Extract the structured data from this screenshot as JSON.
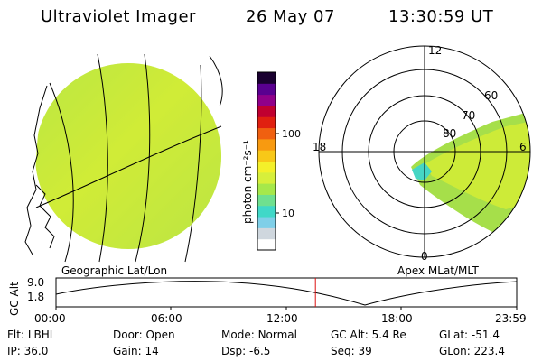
{
  "header": {
    "instrument": "Ultraviolet Imager",
    "date": "26 May 07",
    "time": "13:30:59 UT"
  },
  "left_panel": {
    "label": "Geographic Lat/Lon"
  },
  "colorbar": {
    "unit_label": "photon cm⁻²s⁻¹",
    "ticks": [
      "100",
      "10"
    ],
    "scale": "log",
    "colors": [
      "#ffffff",
      "#cfd7de",
      "#7fcfe8",
      "#40d8c8",
      "#6fe08f",
      "#a6e84a",
      "#d7ef3b",
      "#f4f02a",
      "#f8c818",
      "#f89a10",
      "#f06010",
      "#e02010",
      "#c00030",
      "#90008a",
      "#5a0090",
      "#1a0030"
    ]
  },
  "polar_panel": {
    "label": "Apex MLat/MLT",
    "mlt_labels": {
      "top": "12",
      "left": "18",
      "right": "6",
      "bottom": "0"
    },
    "mlat_labels": [
      "60",
      "70",
      "80"
    ]
  },
  "timeline": {
    "ylabel": "GC Alt",
    "y_ticks": [
      "9.0",
      "1.8"
    ],
    "x_ticks": [
      "00:00",
      "06:00",
      "12:00",
      "18:00",
      "23:59"
    ],
    "current_time_fraction": 0.5632
  },
  "footer": {
    "rows": [
      [
        {
          "k": "Flt:",
          "v": "LBHL"
        },
        {
          "k": "Door:",
          "v": "Open"
        },
        {
          "k": "Mode:",
          "v": "Normal"
        },
        {
          "k": "GC Alt:",
          "v": "5.4 Re"
        },
        {
          "k": "GLat:",
          "v": "-51.4"
        }
      ],
      [
        {
          "k": "IP:",
          "v": "36.0"
        },
        {
          "k": "Gain:",
          "v": "14"
        },
        {
          "k": "Dsp:",
          "v": "-6.5"
        },
        {
          "k": "Seq:",
          "v": "39"
        },
        {
          "k": "GLon:",
          "v": "223.4"
        }
      ]
    ]
  }
}
